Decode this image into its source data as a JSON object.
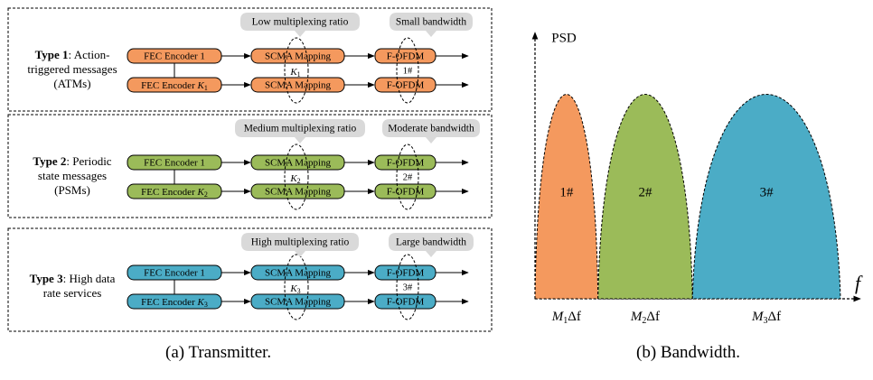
{
  "colors": {
    "type1": "#F4995E",
    "type2": "#9BBB59",
    "type3": "#4BACC6",
    "callout": "#D9D9D9",
    "border": "#000000"
  },
  "transmitter": {
    "panels": [
      {
        "id": "type1",
        "label_bold": "Type 1",
        "label_lines": [
          ": Action-",
          "triggered messages",
          "(ATMs)"
        ],
        "encoder_top": "FEC Encoder 1",
        "encoder_bottom_prefix": "FEC Encoder ",
        "encoder_bottom_italic": "K",
        "encoder_bottom_sub": "1",
        "mapping_top": "SCMA Mapping",
        "mapping_bottom": "SCMA Mapping",
        "ofdm_top": "F-OFDM",
        "ofdm_bottom": "F-OFDM",
        "k_label": "K",
        "k_sub": "1",
        "band_label": "1#",
        "callout_mapping": "Low multiplexing ratio",
        "callout_ofdm": "Small bandwidth"
      },
      {
        "id": "type2",
        "label_bold": "Type 2",
        "label_lines": [
          ": Periodic",
          "state messages",
          "(PSMs)"
        ],
        "encoder_top": "FEC Encoder 1",
        "encoder_bottom_prefix": "FEC Encoder ",
        "encoder_bottom_italic": "K",
        "encoder_bottom_sub": "2",
        "mapping_top": "SCMA Mapping",
        "mapping_bottom": "SCMA Mapping",
        "ofdm_top": "F-OFDM",
        "ofdm_bottom": "F-OFDM",
        "k_label": "K",
        "k_sub": "2",
        "band_label": "2#",
        "callout_mapping": "Medium multiplexing ratio",
        "callout_ofdm": "Moderate bandwidth"
      },
      {
        "id": "type3",
        "label_bold": "Type 3",
        "label_lines": [
          ": High data",
          "rate services"
        ],
        "encoder_top": "FEC Encoder 1",
        "encoder_bottom_prefix": "FEC Encoder ",
        "encoder_bottom_italic": "K",
        "encoder_bottom_sub": "3",
        "mapping_top": "SCMA Mapping",
        "mapping_bottom": "SCMA Mapping",
        "ofdm_top": "F-OFDM",
        "ofdm_bottom": "F-OFDM",
        "k_label": "K",
        "k_sub": "3",
        "band_label": "3#",
        "callout_mapping": "High multiplexing ratio",
        "callout_ofdm": "Large bandwidth"
      }
    ],
    "caption": "(a)  Transmitter."
  },
  "bandwidth": {
    "y_axis_label": "PSD",
    "x_axis_label": "f",
    "lobes": [
      {
        "label": "1#",
        "width_label_italic": "M",
        "width_label_sub": "1",
        "width_label_suffix": "Δf",
        "relative_width": 1,
        "color_key": "type1"
      },
      {
        "label": "2#",
        "width_label_italic": "M",
        "width_label_sub": "2",
        "width_label_suffix": "Δf",
        "relative_width": 1.5,
        "color_key": "type2"
      },
      {
        "label": "3#",
        "width_label_italic": "M",
        "width_label_sub": "3",
        "width_label_suffix": "Δf",
        "relative_width": 2.35,
        "color_key": "type3"
      }
    ],
    "caption": "(b)  Bandwidth."
  }
}
